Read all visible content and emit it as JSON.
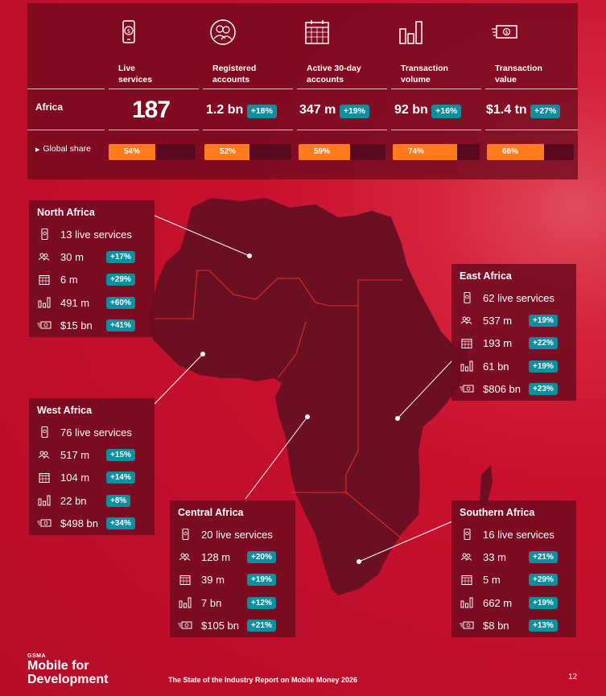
{
  "summary": {
    "columns": [
      {
        "icon": "mobile-money-icon",
        "heading_line1": "Live",
        "heading_line2": "services",
        "value": "187",
        "growth": "",
        "share": "54%",
        "share_fraction": 0.54
      },
      {
        "icon": "accounts-icon",
        "heading_line1": "Registered",
        "heading_line2": "accounts",
        "value": "1.2 bn",
        "growth": "+18%",
        "share": "52%",
        "share_fraction": 0.52
      },
      {
        "icon": "calendar-icon",
        "heading_line1": "Active 30-day",
        "heading_line2": "accounts",
        "value": "347 m",
        "growth": "+19%",
        "share": "59%",
        "share_fraction": 0.59
      },
      {
        "icon": "bar-chart-icon",
        "heading_line1": "Transaction",
        "heading_line2": "volume",
        "value": "92 bn",
        "growth": "+16%",
        "share": "74%",
        "share_fraction": 0.74
      },
      {
        "icon": "banknote-icon",
        "heading_line1": "Transaction",
        "heading_line2": "value",
        "value": "$1.4 tn",
        "growth": "+27%",
        "share": "66%",
        "share_fraction": 0.66
      }
    ],
    "row_label": "Africa",
    "share_label": "Global share"
  },
  "regions": {
    "north": {
      "title": "North Africa",
      "services": "13 live services",
      "accounts": "30 m",
      "accounts_growth": "+17%",
      "active": "6 m",
      "active_growth": "+29%",
      "volume": "491 m",
      "volume_growth": "+60%",
      "value": "$15 bn",
      "value_growth": "+41%"
    },
    "west": {
      "title": "West Africa",
      "services": "76 live services",
      "accounts": "517 m",
      "accounts_growth": "+15%",
      "active": "104 m",
      "active_growth": "+14%",
      "volume": "22 bn",
      "volume_growth": "+8%",
      "value": "$498 bn",
      "value_growth": "+34%"
    },
    "central": {
      "title": "Central Africa",
      "services": "20 live services",
      "accounts": "128 m",
      "accounts_growth": "+20%",
      "active": "39 m",
      "active_growth": "+19%",
      "volume": "7 bn",
      "volume_growth": "+12%",
      "value": "$105 bn",
      "value_growth": "+21%"
    },
    "east": {
      "title": "East Africa",
      "services": "62 live services",
      "accounts": "537 m",
      "accounts_growth": "+19%",
      "active": "193 m",
      "active_growth": "+22%",
      "volume": "61 bn",
      "volume_growth": "+19%",
      "value": "$806 bn",
      "value_growth": "+23%"
    },
    "southern": {
      "title": "Southern Africa",
      "services": "16 live services",
      "accounts": "33 m",
      "accounts_growth": "+21%",
      "active": "5 m",
      "active_growth": "+29%",
      "volume": "662 m",
      "volume_growth": "+19%",
      "value": "$8 bn",
      "value_growth": "+13%"
    }
  },
  "footer": {
    "brand_small": "GSMA",
    "brand_line1": "Mobile for",
    "brand_line2": "Development",
    "report_title": "The State of the Industry Report on Mobile Money 2026",
    "page_number": "12"
  },
  "colors": {
    "background": "#c8102e",
    "panel": "#6e0a1e",
    "map_fill": "#6b0f22",
    "growth_badge": "#0e8fa0",
    "share_bar": "#ff7a1a",
    "region_border": "#e8302a"
  }
}
